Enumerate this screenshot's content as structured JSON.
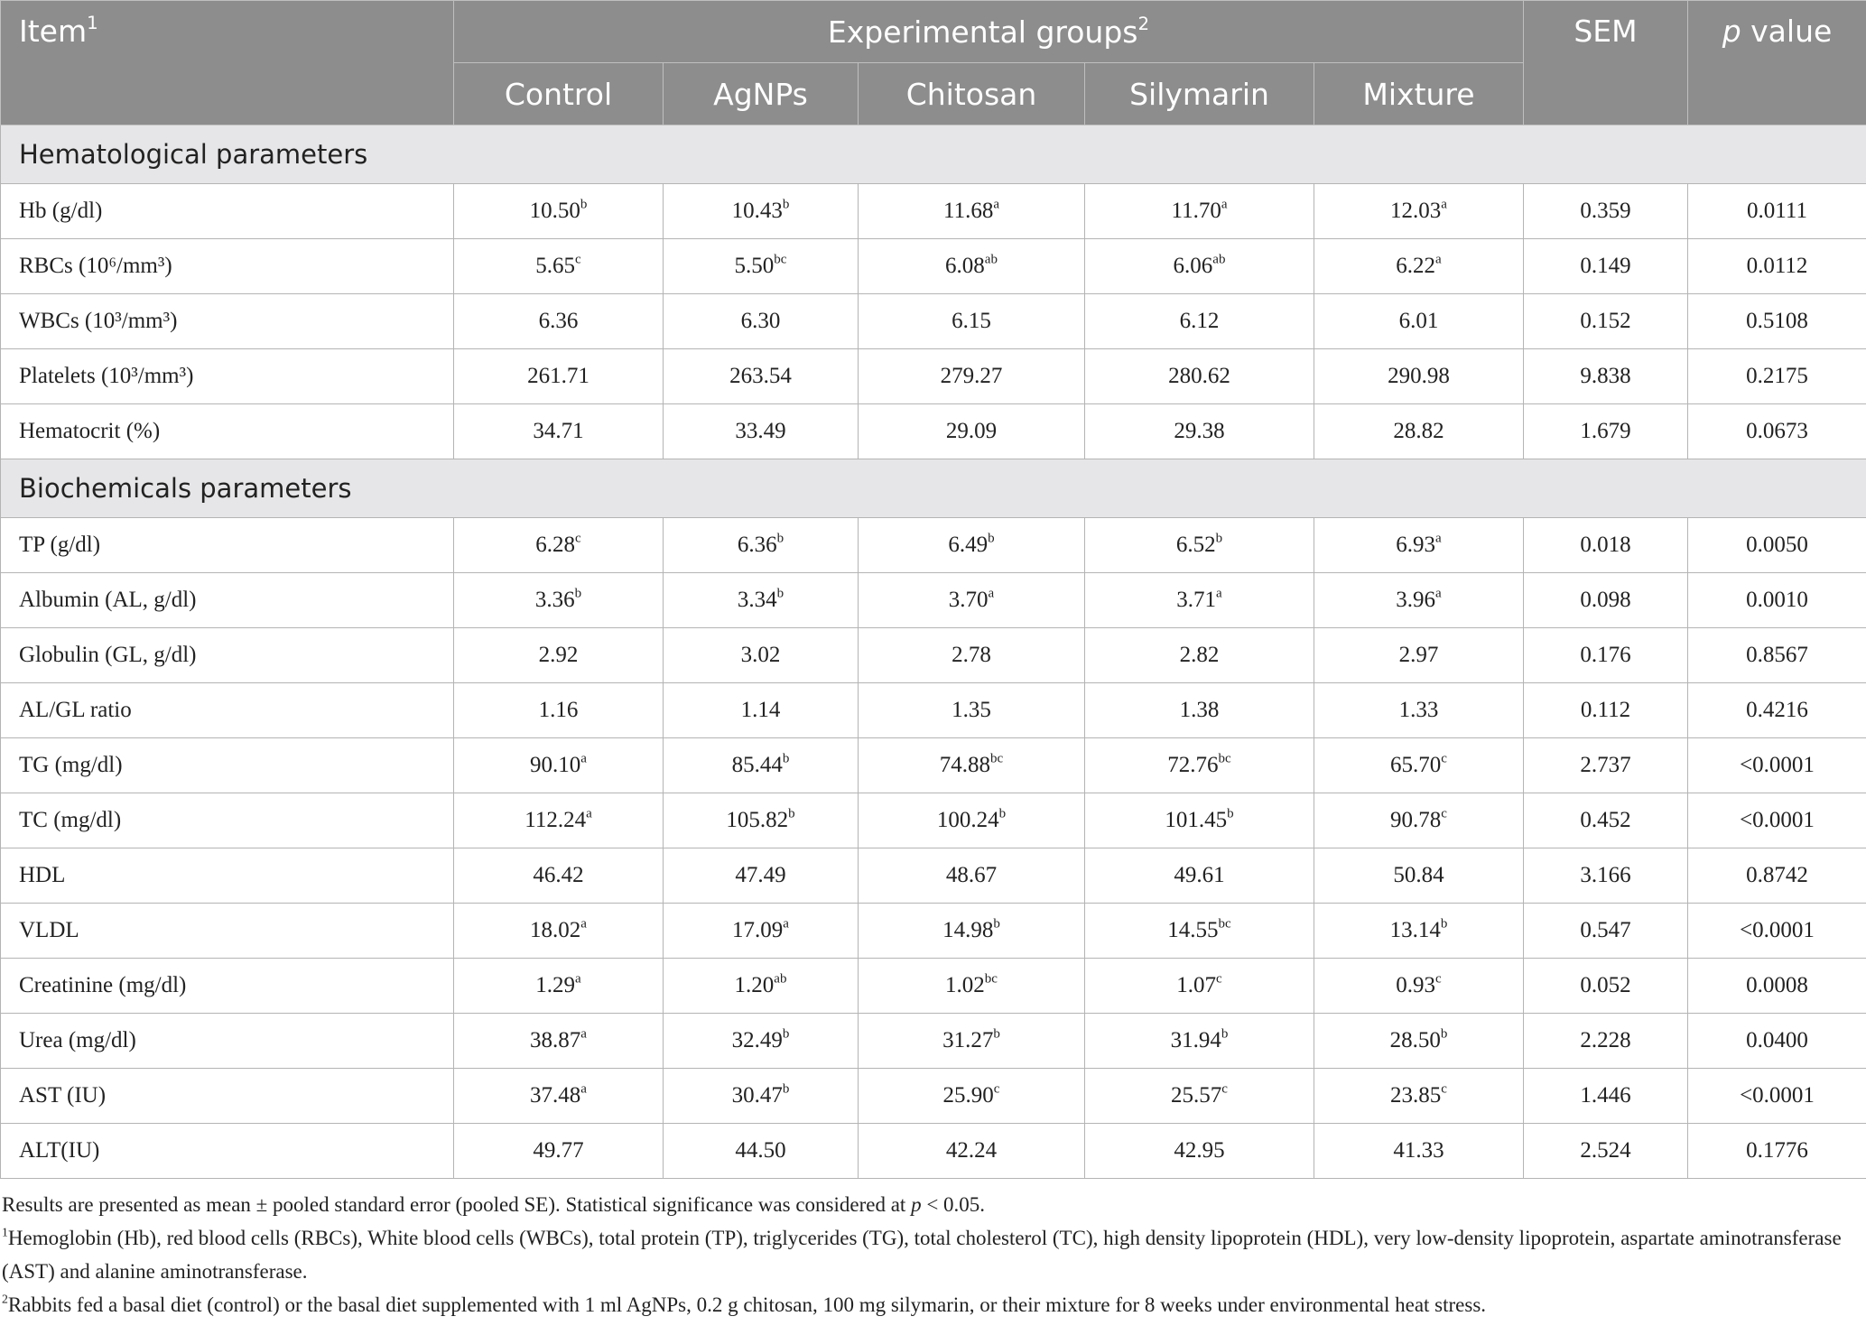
{
  "header": {
    "item": {
      "text": "Item",
      "sup": "1"
    },
    "groups": {
      "text": "Experimental groups",
      "sup": "2"
    },
    "sem": "SEM",
    "p_value": {
      "italic": "p",
      "text": " value"
    },
    "columns": [
      "Control",
      "AgNPs",
      "Chitosan",
      "Silymarin",
      "Mixture"
    ]
  },
  "sections": [
    {
      "title": "Hematological parameters",
      "rows": [
        {
          "label": "Hb (g/dl)",
          "cells": [
            {
              "v": "10.50",
              "sup": "b"
            },
            {
              "v": "10.43",
              "sup": "b"
            },
            {
              "v": "11.68",
              "sup": "a"
            },
            {
              "v": "11.70",
              "sup": "a"
            },
            {
              "v": "12.03",
              "sup": "a"
            }
          ],
          "sem": "0.359",
          "p": "0.0111"
        },
        {
          "label": "RBCs (10⁶/mm³)",
          "cells": [
            {
              "v": "5.65",
              "sup": "c"
            },
            {
              "v": "5.50",
              "sup": "bc"
            },
            {
              "v": "6.08",
              "sup": "ab"
            },
            {
              "v": "6.06",
              "sup": "ab"
            },
            {
              "v": "6.22",
              "sup": "a"
            }
          ],
          "sem": "0.149",
          "p": "0.0112"
        },
        {
          "label": "WBCs (10³/mm³)",
          "cells": [
            {
              "v": "6.36"
            },
            {
              "v": "6.30"
            },
            {
              "v": "6.15"
            },
            {
              "v": "6.12"
            },
            {
              "v": "6.01"
            }
          ],
          "sem": "0.152",
          "p": "0.5108"
        },
        {
          "label": "Platelets (10³/mm³)",
          "cells": [
            {
              "v": "261.71"
            },
            {
              "v": "263.54"
            },
            {
              "v": "279.27"
            },
            {
              "v": "280.62"
            },
            {
              "v": "290.98"
            }
          ],
          "sem": "9.838",
          "p": "0.2175"
        },
        {
          "label": "Hematocrit (%)",
          "cells": [
            {
              "v": "34.71"
            },
            {
              "v": "33.49"
            },
            {
              "v": "29.09"
            },
            {
              "v": "29.38"
            },
            {
              "v": "28.82"
            }
          ],
          "sem": "1.679",
          "p": "0.0673"
        }
      ]
    },
    {
      "title": "Biochemicals parameters",
      "rows": [
        {
          "label": "TP (g/dl)",
          "cells": [
            {
              "v": "6.28",
              "sup": "c"
            },
            {
              "v": "6.36",
              "sup": "b"
            },
            {
              "v": "6.49",
              "sup": "b"
            },
            {
              "v": "6.52",
              "sup": "b"
            },
            {
              "v": "6.93",
              "sup": "a"
            }
          ],
          "sem": "0.018",
          "p": "0.0050"
        },
        {
          "label": "Albumin (AL, g/dl)",
          "cells": [
            {
              "v": "3.36",
              "sup": "b"
            },
            {
              "v": "3.34",
              "sup": "b"
            },
            {
              "v": "3.70",
              "sup": "a"
            },
            {
              "v": "3.71",
              "sup": "a"
            },
            {
              "v": "3.96",
              "sup": "a"
            }
          ],
          "sem": "0.098",
          "p": "0.0010"
        },
        {
          "label": "Globulin (GL, g/dl)",
          "cells": [
            {
              "v": "2.92"
            },
            {
              "v": "3.02"
            },
            {
              "v": "2.78"
            },
            {
              "v": "2.82"
            },
            {
              "v": "2.97"
            }
          ],
          "sem": "0.176",
          "p": "0.8567"
        },
        {
          "label": "AL/GL ratio",
          "cells": [
            {
              "v": "1.16"
            },
            {
              "v": "1.14"
            },
            {
              "v": "1.35"
            },
            {
              "v": "1.38"
            },
            {
              "v": "1.33"
            }
          ],
          "sem": "0.112",
          "p": "0.4216"
        },
        {
          "label": "TG (mg/dl)",
          "cells": [
            {
              "v": "90.10",
              "sup": "a"
            },
            {
              "v": "85.44",
              "sup": "b"
            },
            {
              "v": "74.88",
              "sup": "bc"
            },
            {
              "v": "72.76",
              "sup": "bc"
            },
            {
              "v": "65.70",
              "sup": "c"
            }
          ],
          "sem": "2.737",
          "p": "<0.0001"
        },
        {
          "label": "TC (mg/dl)",
          "cells": [
            {
              "v": "112.24",
              "sup": "a"
            },
            {
              "v": "105.82",
              "sup": "b"
            },
            {
              "v": "100.24",
              "sup": "b"
            },
            {
              "v": "101.45",
              "sup": "b"
            },
            {
              "v": "90.78",
              "sup": "c"
            }
          ],
          "sem": "0.452",
          "p": "<0.0001"
        },
        {
          "label": "HDL",
          "cells": [
            {
              "v": "46.42"
            },
            {
              "v": "47.49"
            },
            {
              "v": "48.67"
            },
            {
              "v": "49.61"
            },
            {
              "v": "50.84"
            }
          ],
          "sem": "3.166",
          "p": "0.8742"
        },
        {
          "label": "VLDL",
          "cells": [
            {
              "v": "18.02",
              "sup": "a"
            },
            {
              "v": "17.09",
              "sup": "a"
            },
            {
              "v": "14.98",
              "sup": "b"
            },
            {
              "v": "14.55",
              "sup": "bc"
            },
            {
              "v": "13.14",
              "sup": "b"
            }
          ],
          "sem": "0.547",
          "p": "<0.0001"
        },
        {
          "label": "Creatinine (mg/dl)",
          "cells": [
            {
              "v": "1.29",
              "sup": "a"
            },
            {
              "v": "1.20",
              "sup": "ab"
            },
            {
              "v": "1.02",
              "sup": "bc"
            },
            {
              "v": "1.07",
              "sup": "c"
            },
            {
              "v": "0.93",
              "sup": "c"
            }
          ],
          "sem": "0.052",
          "p": "0.0008"
        },
        {
          "label": "Urea (mg/dl)",
          "cells": [
            {
              "v": "38.87",
              "sup": "a"
            },
            {
              "v": "32.49",
              "sup": "b"
            },
            {
              "v": "31.27",
              "sup": "b"
            },
            {
              "v": "31.94",
              "sup": "b"
            },
            {
              "v": "28.50",
              "sup": "b"
            }
          ],
          "sem": "2.228",
          "p": "0.0400"
        },
        {
          "label": "AST (IU)",
          "cells": [
            {
              "v": "37.48",
              "sup": "a"
            },
            {
              "v": "30.47",
              "sup": "b"
            },
            {
              "v": "25.90",
              "sup": "c"
            },
            {
              "v": "25.57",
              "sup": "c"
            },
            {
              "v": "23.85",
              "sup": "c"
            }
          ],
          "sem": "1.446",
          "p": "<0.0001"
        },
        {
          "label": "ALT(IU)",
          "cells": [
            {
              "v": "49.77"
            },
            {
              "v": "44.50"
            },
            {
              "v": "42.24"
            },
            {
              "v": "42.95"
            },
            {
              "v": "41.33"
            }
          ],
          "sem": "2.524",
          "p": "0.1776"
        }
      ]
    }
  ],
  "notes": {
    "main": {
      "text": "Results are presented as mean ± pooled standard error (pooled SE). Statistical significance was considered at ",
      "italic": "p",
      "tail": " < 0.05."
    },
    "list": [
      {
        "sup": "1",
        "text": "Hemoglobin (Hb), red blood cells (RBCs), White blood cells (WBCs), total protein (TP), triglycerides (TG), total cholesterol (TC), high density lipoprotein (HDL), very low-density lipoprotein, aspartate aminotransferase (AST) and alanine aminotransferase."
      },
      {
        "sup": "2",
        "text": "Rabbits fed a basal diet (control) or the basal diet supplemented with 1 ml AgNPs, 0.2 g chitosan, 100 mg silymarin, or their mixture for 8 weeks under environmental heat stress."
      }
    ]
  }
}
